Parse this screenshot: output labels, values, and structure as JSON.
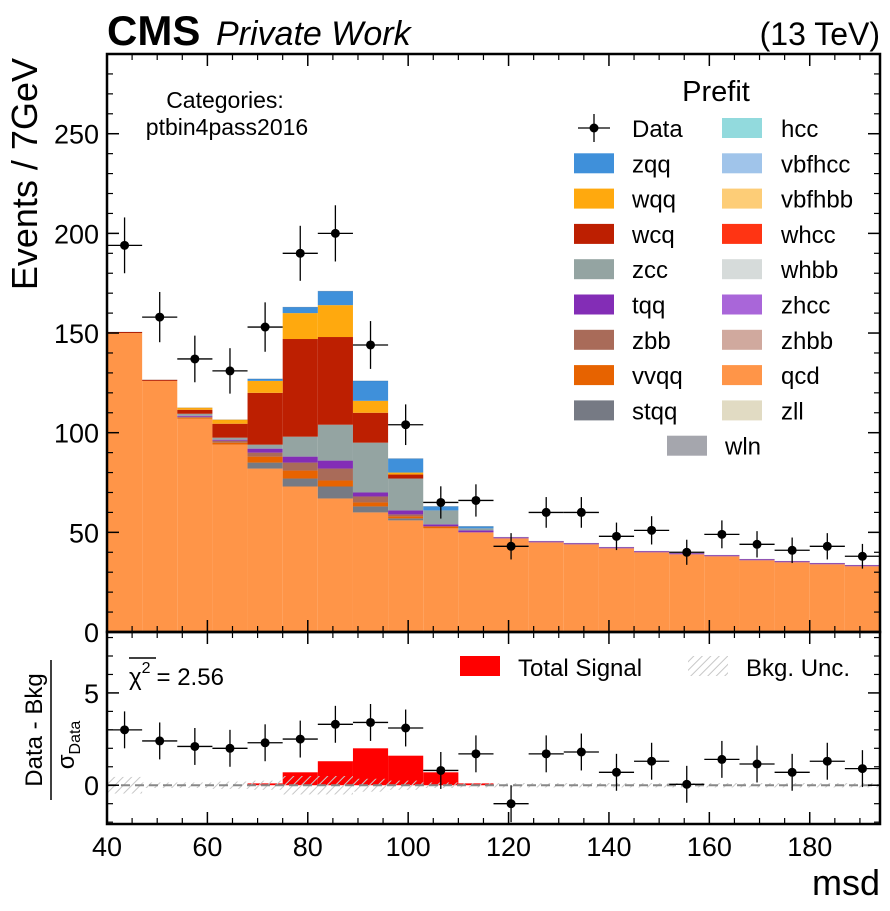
{
  "header": {
    "experiment": "CMS",
    "tag": "Private Work",
    "energy": "(13 TeV)"
  },
  "category": {
    "title": "Categories:",
    "name": "ptbin4pass2016"
  },
  "legend": {
    "title": "Prefit",
    "data_label": "Data"
  },
  "chart_data": [
    {
      "type": "bar",
      "subtype": "stacked-histogram",
      "xlabel": "msd",
      "ylabel": "Events / 7GeV",
      "xlim": [
        40,
        194
      ],
      "ylim": [
        0,
        290
      ],
      "xticks": [
        40,
        60,
        80,
        100,
        120,
        140,
        160,
        180
      ],
      "yticks": [
        0,
        50,
        100,
        150,
        200,
        250
      ],
      "bin_edges": [
        40,
        47,
        54,
        61,
        68,
        75,
        82,
        89,
        96,
        103,
        110,
        117,
        124,
        131,
        138,
        145,
        152,
        159,
        166,
        173,
        180,
        187,
        194
      ],
      "series": [
        {
          "name": "qcd",
          "color": "#ff9548",
          "values": [
            150,
            126,
            107,
            94,
            82,
            73,
            67,
            60,
            56,
            52,
            50,
            47,
            45,
            44,
            42,
            40,
            39,
            38,
            36,
            35,
            34,
            33
          ]
        },
        {
          "name": "stqq",
          "color": "#767a84",
          "values": [
            0,
            0,
            0,
            0,
            3,
            4,
            6,
            3,
            1,
            0,
            0,
            0,
            0,
            0,
            0,
            0,
            0,
            0,
            0,
            0,
            0,
            0
          ]
        },
        {
          "name": "vvqq",
          "color": "#e76300",
          "values": [
            0,
            0,
            0.5,
            1,
            3,
            4,
            3,
            2,
            1,
            1,
            0,
            0,
            0,
            0,
            0,
            0,
            0,
            0,
            0,
            0,
            0,
            0
          ]
        },
        {
          "name": "zbb",
          "color": "#a96b59",
          "values": [
            0,
            0,
            0.5,
            1,
            2,
            4,
            6,
            3,
            1,
            0,
            0,
            0,
            0,
            0,
            0,
            0,
            0,
            0,
            0,
            0,
            0,
            0
          ]
        },
        {
          "name": "tqq",
          "color": "#832db6",
          "values": [
            0,
            0,
            0.5,
            0.5,
            2,
            3,
            4,
            2,
            2,
            1,
            1,
            0.5,
            0.5,
            0.5,
            0.5,
            0.5,
            0.5,
            0.5,
            0.5,
            0.5,
            0.5,
            0.5
          ]
        },
        {
          "name": "zcc",
          "color": "#94a4a2",
          "values": [
            0,
            0,
            1,
            1,
            2,
            10,
            18,
            25,
            16,
            7,
            1,
            0,
            0,
            0,
            0,
            0,
            0,
            0,
            0,
            0,
            0,
            0
          ]
        },
        {
          "name": "wcq",
          "color": "#bd1f01",
          "values": [
            0.5,
            0.5,
            2,
            7,
            26,
            49,
            44,
            15,
            2,
            0,
            0,
            0,
            0,
            0,
            0,
            0,
            0,
            0,
            0,
            0,
            0,
            0
          ]
        },
        {
          "name": "wqq",
          "color": "#ffa90e",
          "values": [
            0,
            0,
            1,
            2,
            6,
            13,
            16,
            6,
            1,
            0,
            0,
            0,
            0,
            0,
            0,
            0,
            0,
            0,
            0,
            0,
            0,
            0
          ]
        },
        {
          "name": "zqq",
          "color": "#3f90da",
          "values": [
            0,
            0,
            0,
            0,
            1,
            3,
            7,
            10,
            7,
            2,
            1,
            0,
            0,
            0,
            0,
            0,
            0,
            0,
            0,
            0,
            0,
            0
          ]
        },
        {
          "name": "hcc",
          "color": "#92dadd",
          "values": [
            0,
            0,
            0,
            0,
            0,
            0,
            0,
            0,
            0,
            0,
            0,
            0,
            0,
            0,
            0,
            0,
            0,
            0,
            0,
            0,
            0,
            0
          ]
        },
        {
          "name": "vbfhcc",
          "color": "#a0c4ea",
          "values": [
            0,
            0,
            0,
            0,
            0,
            0,
            0,
            0,
            0,
            0,
            0,
            0,
            0,
            0,
            0,
            0,
            0,
            0,
            0,
            0,
            0,
            0
          ]
        },
        {
          "name": "vbfhbb",
          "color": "#fdcd77",
          "values": [
            0,
            0,
            0,
            0,
            0,
            0,
            0,
            0,
            0,
            0,
            0,
            0,
            0,
            0,
            0,
            0,
            0,
            0,
            0,
            0,
            0,
            0
          ]
        },
        {
          "name": "whcc",
          "color": "#ff3413",
          "values": [
            0,
            0,
            0,
            0,
            0,
            0,
            0,
            0,
            0,
            0,
            0,
            0,
            0,
            0,
            0,
            0,
            0,
            0,
            0,
            0,
            0,
            0
          ]
        },
        {
          "name": "whbb",
          "color": "#d6dbda",
          "values": [
            0,
            0,
            0,
            0,
            0,
            0,
            0,
            0,
            0,
            0,
            0,
            0,
            0,
            0,
            0,
            0,
            0,
            0,
            0,
            0,
            0,
            0
          ]
        },
        {
          "name": "zhcc",
          "color": "#a966d9",
          "values": [
            0,
            0,
            0,
            0,
            0,
            0,
            0,
            0,
            0,
            0,
            0,
            0,
            0,
            0,
            0,
            0,
            0,
            0,
            0,
            0,
            0,
            0
          ]
        },
        {
          "name": "zhbb",
          "color": "#d0a99e",
          "values": [
            0,
            0,
            0,
            0,
            0,
            0,
            0,
            0,
            0,
            0,
            0,
            0,
            0,
            0,
            0,
            0,
            0,
            0,
            0,
            0,
            0,
            0
          ]
        },
        {
          "name": "zll",
          "color": "#e1dbc3",
          "values": [
            0,
            0,
            0,
            0,
            0,
            0,
            0,
            0,
            0,
            0,
            0,
            0,
            0,
            0,
            0,
            0,
            0,
            0,
            0,
            0,
            0,
            0
          ]
        },
        {
          "name": "wln",
          "color": "#a5a6ad",
          "values": [
            0,
            0,
            0,
            0,
            0,
            0,
            0,
            0,
            0,
            0,
            0,
            0,
            0,
            0,
            0,
            0,
            0,
            0,
            0,
            0,
            0,
            0
          ]
        }
      ],
      "data": {
        "name": "Data",
        "values": [
          194,
          158,
          137,
          131,
          153,
          190,
          200,
          144,
          104,
          65,
          66,
          43,
          60,
          60,
          48,
          51,
          40,
          49,
          44,
          41,
          43,
          38
        ],
        "errors": [
          14,
          12.6,
          11.7,
          11.4,
          12.4,
          13.8,
          14.1,
          12.0,
          10.2,
          8.1,
          8.1,
          6.6,
          7.7,
          7.7,
          6.9,
          7.1,
          6.3,
          7.0,
          6.6,
          6.4,
          6.6,
          6.2
        ]
      }
    },
    {
      "type": "scatter",
      "subtype": "ratio-pull",
      "ylim": [
        -2.1,
        8.3
      ],
      "yticks": [
        0,
        5
      ],
      "ylabel_numerator": "Data - Bkg",
      "ylabel_denominator": "σ",
      "ylabel_denominator_sub": "Data",
      "chi2_label": "χ",
      "chi2_sup": "2",
      "chi2_value": "= 2.56",
      "pull": [
        3.0,
        2.4,
        2.1,
        2.0,
        2.3,
        2.5,
        3.3,
        3.4,
        3.1,
        0.8,
        1.7,
        -1.0,
        1.7,
        1.8,
        0.7,
        1.3,
        0.05,
        1.4,
        1.15,
        0.7,
        1.3,
        0.9
      ],
      "pull_err": 1,
      "total_signal": {
        "name": "Total Signal",
        "color": "#ff0000",
        "values": [
          0,
          0,
          0,
          0,
          0.1,
          0.7,
          1.3,
          2.0,
          1.6,
          0.7,
          0.1,
          0,
          0,
          0,
          0,
          0,
          0,
          0,
          0,
          0,
          0,
          0
        ]
      },
      "bkg_unc": {
        "name": "Bkg. Unc.",
        "values": [
          0.45,
          0.15,
          0.15,
          0.2,
          0.25,
          0.5,
          0.5,
          0.35,
          0.25,
          0.15,
          0.12,
          0.12,
          0.12,
          0.12,
          0.12,
          0.12,
          0.12,
          0.12,
          0.12,
          0.12,
          0.12,
          0.12
        ]
      }
    }
  ]
}
